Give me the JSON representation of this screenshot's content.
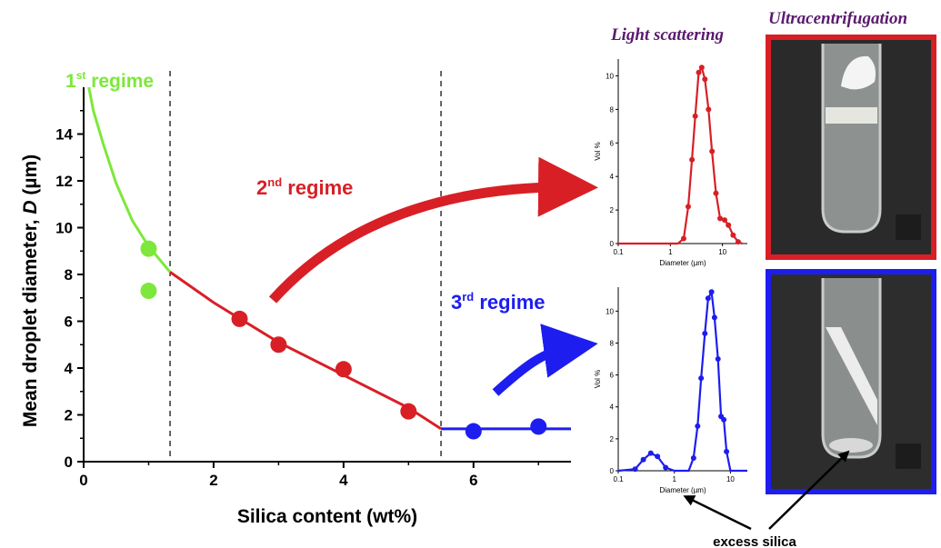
{
  "headings": {
    "light_scattering": "Light scattering",
    "ultracentrifugation": "Ultracentrifugation"
  },
  "annotations": {
    "regime1": {
      "prefix": "1",
      "sup": "st",
      "suffix": " regime",
      "color": "#7de83b"
    },
    "regime2": {
      "prefix": "2",
      "sup": "nd",
      "suffix": " regime",
      "color": "#d81f26"
    },
    "regime3": {
      "prefix": "3",
      "sup": "rd",
      "suffix": " regime",
      "color": "#1d1df0"
    },
    "excess_silica": "excess silica"
  },
  "colors": {
    "green": "#7de83b",
    "red": "#d81f26",
    "blue": "#1d1df0",
    "frame_red": "#d81f26",
    "frame_blue": "#1d1df0"
  },
  "chart_data": [
    {
      "type": "scatter",
      "xlabel": "Silica content (wt%)",
      "ylabel": "Mean droplet diameter, D (µm)",
      "xlim": [
        0,
        7.5
      ],
      "ylim": [
        0,
        16
      ],
      "xticks": [
        0,
        2,
        4,
        6
      ],
      "yticks": [
        0,
        2,
        4,
        6,
        8,
        10,
        12,
        14
      ],
      "vlines": [
        1.33,
        5.5
      ],
      "series": [
        {
          "color": "#7de83b",
          "points": [
            [
              1.0,
              9.1
            ],
            [
              1.0,
              7.3
            ]
          ]
        },
        {
          "color": "#d81f26",
          "points": [
            [
              2.4,
              6.1
            ],
            [
              3.0,
              5.0
            ],
            [
              4.0,
              3.95
            ],
            [
              5.0,
              2.15
            ]
          ]
        },
        {
          "color": "#1d1df0",
          "points": [
            [
              6.0,
              1.3
            ],
            [
              7.0,
              1.5
            ]
          ]
        }
      ],
      "fits": [
        {
          "color": "#7de83b",
          "points": [
            [
              0.08,
              16
            ],
            [
              0.15,
              15.0
            ],
            [
              0.3,
              13.6
            ],
            [
              0.5,
              11.9
            ],
            [
              0.75,
              10.3
            ],
            [
              1.0,
              9.2
            ],
            [
              1.33,
              8.1
            ]
          ]
        },
        {
          "color": "#d81f26",
          "points": [
            [
              1.33,
              8.1
            ],
            [
              2.0,
              6.8
            ],
            [
              3.0,
              5.1
            ],
            [
              4.0,
              3.7
            ],
            [
              5.0,
              2.3
            ],
            [
              5.5,
              1.4
            ]
          ]
        },
        {
          "color": "#1d1df0",
          "points": [
            [
              5.5,
              1.4
            ],
            [
              7.5,
              1.4
            ]
          ]
        }
      ]
    },
    {
      "type": "line",
      "xlabel": "Diameter (µm)",
      "ylabel": "Vol %",
      "xscale": "log",
      "xlim": [
        0.1,
        30
      ],
      "ylim": [
        0,
        11
      ],
      "yticks": [
        0,
        2,
        4,
        6,
        8,
        10
      ],
      "xticks": [
        {
          "v": 0.1,
          "label": "0.1"
        },
        {
          "v": 1,
          "label": "1"
        },
        {
          "v": 10,
          "label": "10"
        }
      ],
      "series": [
        {
          "color": "#d81f26",
          "points": [
            [
              0.1,
              0
            ],
            [
              0.5,
              0
            ],
            [
              1.4,
              0
            ],
            [
              1.8,
              0.3
            ],
            [
              2.2,
              2.2
            ],
            [
              2.6,
              5.0
            ],
            [
              3.0,
              7.6
            ],
            [
              3.5,
              10.2
            ],
            [
              4.0,
              10.5
            ],
            [
              4.6,
              9.8
            ],
            [
              5.4,
              8.0
            ],
            [
              6.3,
              5.5
            ],
            [
              7.5,
              3.0
            ],
            [
              9.0,
              1.5
            ],
            [
              11.0,
              1.4
            ],
            [
              13.0,
              1.1
            ],
            [
              16.0,
              0.5
            ],
            [
              20.0,
              0.1
            ],
            [
              24.0,
              0
            ]
          ]
        }
      ]
    },
    {
      "type": "line",
      "xlabel": "Diameter (µm)",
      "ylabel": "Vol %",
      "xscale": "log",
      "xlim": [
        0.1,
        20
      ],
      "ylim": [
        0,
        11.5
      ],
      "yticks": [
        0,
        2,
        4,
        6,
        8,
        10
      ],
      "xticks": [
        {
          "v": 0.1,
          "label": "0.1"
        },
        {
          "v": 1,
          "label": "1"
        },
        {
          "v": 10,
          "label": "10"
        }
      ],
      "series": [
        {
          "color": "#1d1df0",
          "points": [
            [
              0.1,
              0
            ],
            [
              0.2,
              0.1
            ],
            [
              0.28,
              0.7
            ],
            [
              0.38,
              1.1
            ],
            [
              0.5,
              0.9
            ],
            [
              0.7,
              0.2
            ],
            [
              1.0,
              0
            ],
            [
              1.8,
              0
            ],
            [
              2.2,
              0.8
            ],
            [
              2.6,
              2.8
            ],
            [
              3.0,
              5.8
            ],
            [
              3.5,
              8.6
            ],
            [
              4.0,
              10.8
            ],
            [
              4.6,
              11.2
            ],
            [
              5.2,
              9.6
            ],
            [
              6.0,
              7.0
            ],
            [
              6.8,
              3.4
            ],
            [
              7.6,
              3.2
            ],
            [
              8.5,
              1.2
            ],
            [
              10.0,
              0
            ],
            [
              14.0,
              0
            ],
            [
              20.0,
              0
            ]
          ]
        }
      ]
    }
  ]
}
